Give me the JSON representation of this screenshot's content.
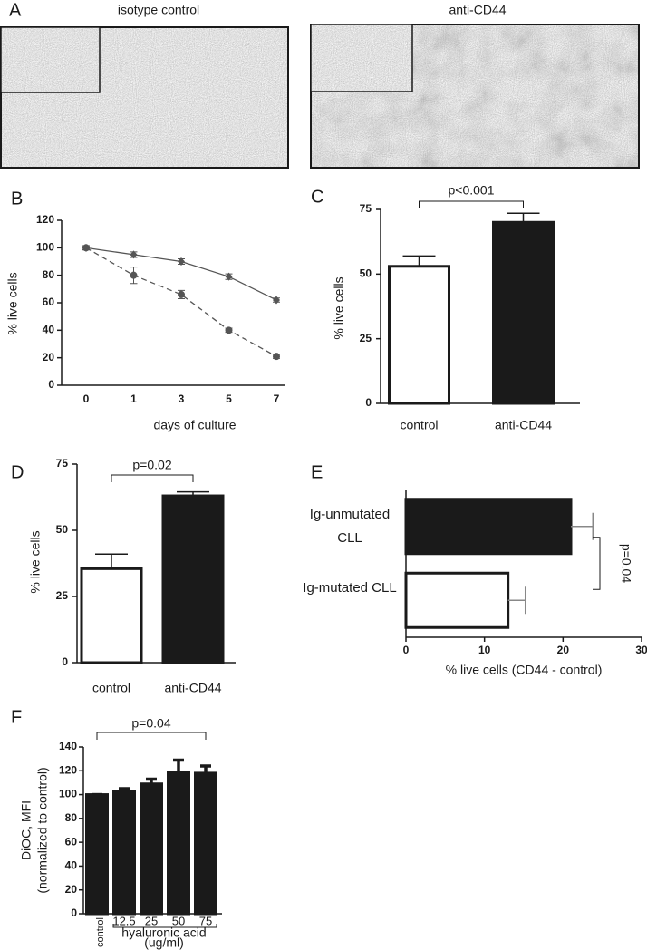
{
  "figure": {
    "panel_label": "A",
    "images": [
      {
        "label": "isotype control"
      },
      {
        "label": "anti-CD44"
      }
    ]
  },
  "chart_data": [
    {
      "panel": "B",
      "type": "line",
      "ylabel": "% live cells",
      "xlabel": "days of culture",
      "categories": [
        "0",
        "1",
        "3",
        "5",
        "7"
      ],
      "ylim": [
        0,
        120
      ],
      "yticks": [
        0,
        20,
        40,
        60,
        80,
        100,
        120
      ],
      "series": [
        {
          "color": "#555555",
          "marker": "diamond",
          "dash": false,
          "values": [
            100,
            95,
            90,
            79,
            62
          ],
          "errors": [
            1.5,
            2,
            2,
            2,
            1.5
          ]
        },
        {
          "color": "#555555",
          "marker": "circle",
          "dash": true,
          "values": [
            100,
            80,
            66,
            40,
            21
          ],
          "errors": [
            1.5,
            6,
            3,
            1.5,
            1.5
          ]
        }
      ]
    },
    {
      "panel": "C",
      "type": "bar",
      "ylabel": "% live cells",
      "categories": [
        "control",
        "anti-CD44"
      ],
      "values": [
        53,
        70
      ],
      "errors": [
        4,
        3.5
      ],
      "colors": [
        "#ffffff",
        "#1a1a1a"
      ],
      "ylim": [
        0,
        75
      ],
      "yticks": [
        0,
        25,
        50,
        75
      ],
      "annotation": "p<0.001"
    },
    {
      "panel": "D",
      "type": "bar",
      "ylabel": "% live cells",
      "categories": [
        "control",
        "anti-CD44"
      ],
      "values": [
        35.5,
        63
      ],
      "errors": [
        5.5,
        1.5
      ],
      "colors": [
        "#ffffff",
        "#1a1a1a"
      ],
      "ylim": [
        0,
        75
      ],
      "yticks": [
        0,
        25,
        50,
        75
      ],
      "annotation": "p=0.02"
    },
    {
      "panel": "E",
      "type": "barh",
      "xlabel": "% live cells (CD44 - control)",
      "categories": [
        "Ig-unmutated CLL",
        "Ig-mutated CLL"
      ],
      "values": [
        21,
        13
      ],
      "errors": [
        2.8,
        2.2
      ],
      "colors": [
        "#1a1a1a",
        "#ffffff"
      ],
      "xlim": [
        0,
        30
      ],
      "xticks": [
        0,
        10,
        20,
        30
      ],
      "annotation": "p=0.04"
    },
    {
      "panel": "F",
      "type": "bar",
      "ylabel": [
        "DiOC, MFI",
        "(normalized to control)"
      ],
      "xlabel": [
        "hyaluronic acid",
        "(ug/ml)"
      ],
      "categories": [
        "control",
        "12.5",
        "25",
        "50",
        "75"
      ],
      "values": [
        100,
        103,
        109,
        119,
        118
      ],
      "errors": [
        0,
        2,
        4,
        10,
        6
      ],
      "color": "#1a1a1a",
      "ylim": [
        0,
        140
      ],
      "yticks": [
        0,
        20,
        40,
        60,
        80,
        100,
        120,
        140
      ],
      "annotation": "p=0.04"
    }
  ]
}
